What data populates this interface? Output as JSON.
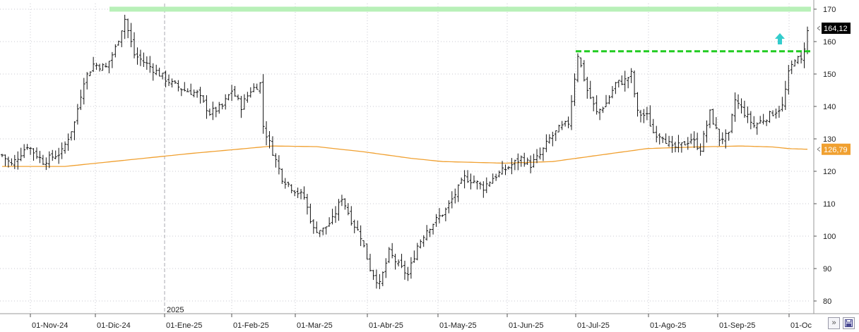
{
  "chart_data": {
    "type": "ohlc",
    "title": "",
    "xlabel": "",
    "ylabel": "",
    "ylim": [
      77,
      172
    ],
    "y_ticks": [
      80,
      90,
      100,
      110,
      120,
      130,
      140,
      150,
      160,
      170
    ],
    "x_ticks": [
      "01-Nov-24",
      "01-Dic-24",
      "01-Ene-25",
      "01-Feb-25",
      "01-Mar-25",
      "01-Abr-25",
      "01-May-25",
      "01-Jun-25",
      "01-Jul-25",
      "01-Ago-25",
      "01-Sep-25",
      "01-Oc"
    ],
    "year_marker": {
      "label": "2025",
      "date": "01-Ene-25"
    },
    "last_price": {
      "label": "164,12",
      "value": 164.12
    },
    "moving_average": {
      "label": "126,79",
      "value": 126.79,
      "color": "#f0a030"
    },
    "resistance_zone": {
      "value": 170,
      "color": "#b8f0b8"
    },
    "breakout_level": {
      "value": 157,
      "color": "#22cc22"
    },
    "breakout_arrow": {
      "icon": "up-arrow-icon",
      "color": "#33cccc"
    },
    "price_waypoints": [
      [
        0,
        125
      ],
      [
        3,
        122
      ],
      [
        8,
        128
      ],
      [
        13,
        123
      ],
      [
        19,
        126
      ],
      [
        23,
        135
      ],
      [
        26,
        148
      ],
      [
        29,
        153
      ],
      [
        33,
        152
      ],
      [
        36,
        158
      ],
      [
        39,
        167
      ],
      [
        42,
        156
      ],
      [
        46,
        153
      ],
      [
        50,
        150
      ],
      [
        54,
        147
      ],
      [
        58,
        145
      ],
      [
        62,
        144
      ],
      [
        66,
        138
      ],
      [
        70,
        140
      ],
      [
        73,
        145
      ],
      [
        76,
        140
      ],
      [
        79,
        145
      ],
      [
        82,
        147
      ],
      [
        83,
        134
      ],
      [
        86,
        126
      ],
      [
        89,
        118
      ],
      [
        92,
        115
      ],
      [
        96,
        112
      ],
      [
        99,
        102
      ],
      [
        102,
        102
      ],
      [
        105,
        105
      ],
      [
        108,
        112
      ],
      [
        111,
        105
      ],
      [
        114,
        100
      ],
      [
        117,
        90
      ],
      [
        120,
        85
      ],
      [
        123,
        95
      ],
      [
        126,
        91
      ],
      [
        129,
        88
      ],
      [
        132,
        97
      ],
      [
        135,
        102
      ],
      [
        138,
        105
      ],
      [
        141,
        108
      ],
      [
        144,
        113
      ],
      [
        147,
        118
      ],
      [
        150,
        117
      ],
      [
        153,
        115
      ],
      [
        156,
        118
      ],
      [
        159,
        120
      ],
      [
        162,
        122
      ],
      [
        165,
        124
      ],
      [
        168,
        122
      ],
      [
        171,
        125
      ],
      [
        174,
        130
      ],
      [
        177,
        133
      ],
      [
        180,
        135
      ],
      [
        183,
        156
      ],
      [
        186,
        145
      ],
      [
        189,
        138
      ],
      [
        192,
        141
      ],
      [
        195,
        147
      ],
      [
        198,
        148
      ],
      [
        200,
        150
      ],
      [
        202,
        138
      ],
      [
        205,
        137
      ],
      [
        207,
        132
      ],
      [
        210,
        131
      ],
      [
        213,
        127
      ],
      [
        216,
        128
      ],
      [
        219,
        130
      ],
      [
        222,
        127
      ],
      [
        225,
        138
      ],
      [
        228,
        130
      ],
      [
        231,
        131
      ],
      [
        233,
        142
      ],
      [
        236,
        138
      ],
      [
        239,
        134
      ],
      [
        242,
        136
      ],
      [
        245,
        138
      ],
      [
        248,
        140
      ],
      [
        250,
        150
      ],
      [
        252,
        155
      ],
      [
        254,
        154
      ],
      [
        256,
        163
      ]
    ],
    "moving_average_waypoints": [
      [
        0,
        121.5
      ],
      [
        20,
        121.5
      ],
      [
        30,
        122.5
      ],
      [
        45,
        124
      ],
      [
        60,
        125.5
      ],
      [
        75,
        126.8
      ],
      [
        86,
        127.8
      ],
      [
        100,
        127.6
      ],
      [
        115,
        126
      ],
      [
        130,
        124
      ],
      [
        140,
        123
      ],
      [
        160,
        122.5
      ],
      [
        175,
        123
      ],
      [
        190,
        125
      ],
      [
        205,
        127
      ],
      [
        220,
        127.5
      ],
      [
        235,
        127.8
      ],
      [
        245,
        127.5
      ],
      [
        250,
        127
      ],
      [
        256,
        126.8
      ]
    ]
  },
  "nav": {
    "scroll_icon": "double-chevron-icon",
    "save_icon": "save-icon"
  }
}
